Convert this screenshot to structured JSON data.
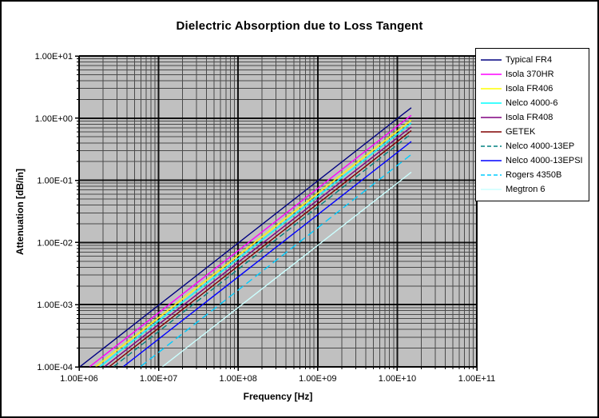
{
  "window": {
    "background_color": "#ffffff",
    "border_color": "#000000"
  },
  "chart_data": {
    "type": "line",
    "title": "Dielectric Absorption due to Loss Tangent",
    "xlabel": "Frequency [Hz]",
    "ylabel": "Attenuation [dB/in]",
    "x_scale": "log",
    "y_scale": "log",
    "xlim": [
      1000000.0,
      100000000000.0
    ],
    "ylim": [
      0.0001,
      10
    ],
    "x_tick_labels": [
      "1.00E+06",
      "1.00E+07",
      "1.00E+08",
      "1.00E+09",
      "1.00E+10",
      "1.00E+11"
    ],
    "y_tick_labels": [
      "1.00E+01",
      "1.00E+00",
      "1.00E-01",
      "1.00E-02",
      "1.00E-03",
      "1.00E-04"
    ],
    "grid": "log major and minor gridlines, both axes",
    "plot_bg_color": "#c0c0c0",
    "grid_minor_color": "#4a4a4a",
    "grid_major_color": "#000000",
    "legend_position": "right-top",
    "series_note": "straight lines on log-log axes, slope 1 (attenuation proportional to frequency), plotted from 1 MHz to 15 GHz",
    "series": [
      {
        "name": "Typical FR4",
        "color": "#000080",
        "dash": "none",
        "x": [
          1000000.0,
          15000000000.0
        ],
        "y": [
          9.8e-05,
          1.47
        ]
      },
      {
        "name": "Isola 370HR",
        "color": "#ff00ff",
        "dash": "none",
        "x": [
          1000000.0,
          15000000000.0
        ],
        "y": [
          7.4e-05,
          1.11
        ]
      },
      {
        "name": "Isola FR406",
        "color": "#ffff00",
        "dash": "none",
        "x": [
          1000000.0,
          15000000000.0
        ],
        "y": [
          6.2e-05,
          0.93
        ]
      },
      {
        "name": "Nelco 4000-6",
        "color": "#00ffff",
        "dash": "none",
        "x": [
          1000000.0,
          15000000000.0
        ],
        "y": [
          5.5e-05,
          0.83
        ]
      },
      {
        "name": "Isola FR408",
        "color": "#800080",
        "dash": "none",
        "x": [
          1000000.0,
          15000000000.0
        ],
        "y": [
          4.8e-05,
          0.72
        ]
      },
      {
        "name": "GETEK",
        "color": "#800000",
        "dash": "none",
        "x": [
          1000000.0,
          15000000000.0
        ],
        "y": [
          4.2e-05,
          0.63
        ]
      },
      {
        "name": "Nelco 4000-13EP",
        "color": "#008080",
        "dash": "7,4",
        "x": [
          1000000.0,
          15000000000.0
        ],
        "y": [
          3.7e-05,
          0.56
        ]
      },
      {
        "name": "Nelco 4000-13EPSI",
        "color": "#0000ff",
        "dash": "none",
        "x": [
          1000000.0,
          15000000000.0
        ],
        "y": [
          2.8e-05,
          0.42
        ]
      },
      {
        "name": "Rogers 4350B",
        "color": "#00ccff",
        "dash": "9,5",
        "x": [
          1000000.0,
          15000000000.0
        ],
        "y": [
          1.7e-05,
          0.26
        ]
      },
      {
        "name": "Megtron 6",
        "color": "#ccffff",
        "dash": "none",
        "x": [
          1000000.0,
          15000000000.0
        ],
        "y": [
          9e-06,
          0.135
        ]
      }
    ]
  }
}
